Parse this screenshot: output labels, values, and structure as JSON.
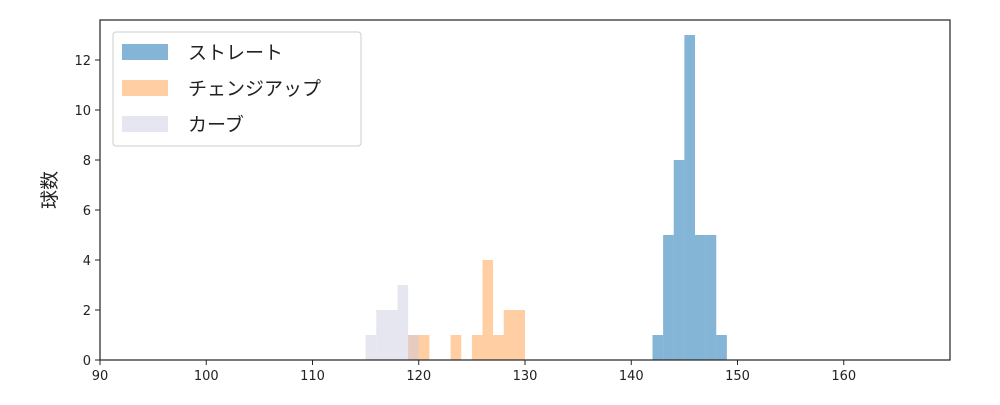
{
  "chart_data": {
    "type": "bar",
    "subtype": "histogram",
    "ylabel": "球数",
    "xlabel": "",
    "xlim": [
      90,
      170
    ],
    "ylim": [
      0,
      13.6
    ],
    "xticks": [
      90,
      100,
      110,
      120,
      130,
      140,
      150,
      160
    ],
    "yticks": [
      0,
      2,
      4,
      6,
      8,
      10,
      12
    ],
    "grid": false,
    "legend_position": "top-left",
    "bin_width": 1,
    "series": [
      {
        "name": "ストレート",
        "color": "#1f77b4",
        "bins": [
          142,
          143,
          144,
          145,
          146,
          147,
          148
        ],
        "counts": [
          1,
          5,
          8,
          13,
          5,
          5,
          1
        ]
      },
      {
        "name": "チェンジアップ",
        "color": "#ff7f0e",
        "bins": [
          119,
          120,
          123,
          125,
          126,
          127,
          128,
          129
        ],
        "counts": [
          1,
          1,
          1,
          1,
          4,
          1,
          2,
          2
        ]
      },
      {
        "name": "カーブ",
        "color": "#c8c8e0",
        "bins": [
          115,
          116,
          117,
          118,
          119
        ],
        "counts": [
          1,
          2,
          2,
          3,
          1
        ]
      }
    ]
  }
}
